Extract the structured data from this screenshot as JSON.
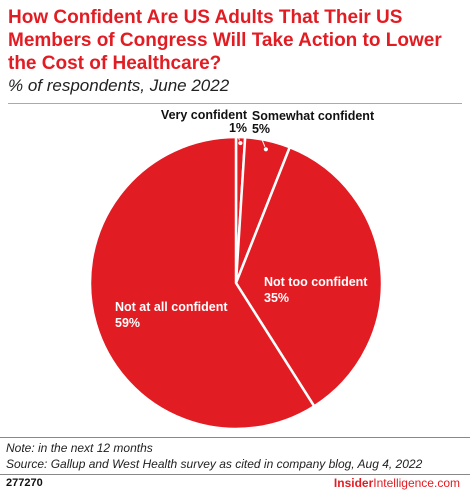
{
  "header": {
    "title": "How Confident Are US Adults That Their US Members of Congress Will Take Action to Lower the Cost of Healthcare?",
    "subtitle": "% of respondents, June 2022"
  },
  "footer": {
    "note": "Note: in the next 12 months",
    "source": "Source: Gallup and West Health survey as cited in company blog, Aug 4, 2022",
    "chart_id": "277270",
    "brand_part1": "Insider",
    "brand_part2": "Intelligence",
    "brand_part3": ".com"
  },
  "chart_data": {
    "type": "pie",
    "title": "How Confident Are US Adults That Their US Members of Congress Will Take Action to Lower the Cost of Healthcare?",
    "subtitle": "% of respondents, June 2022",
    "categories": [
      "Very confident",
      "Somewhat confident",
      "Not too confident",
      "Not at all confident"
    ],
    "values": [
      1,
      5,
      35,
      59
    ],
    "value_labels": [
      "1%",
      "5%",
      "35%",
      "59%"
    ],
    "colors": {
      "slice": "#e21c23",
      "edge": "#ffffff",
      "label_inside": "#ffffff",
      "label_outside": "#111111"
    }
  }
}
